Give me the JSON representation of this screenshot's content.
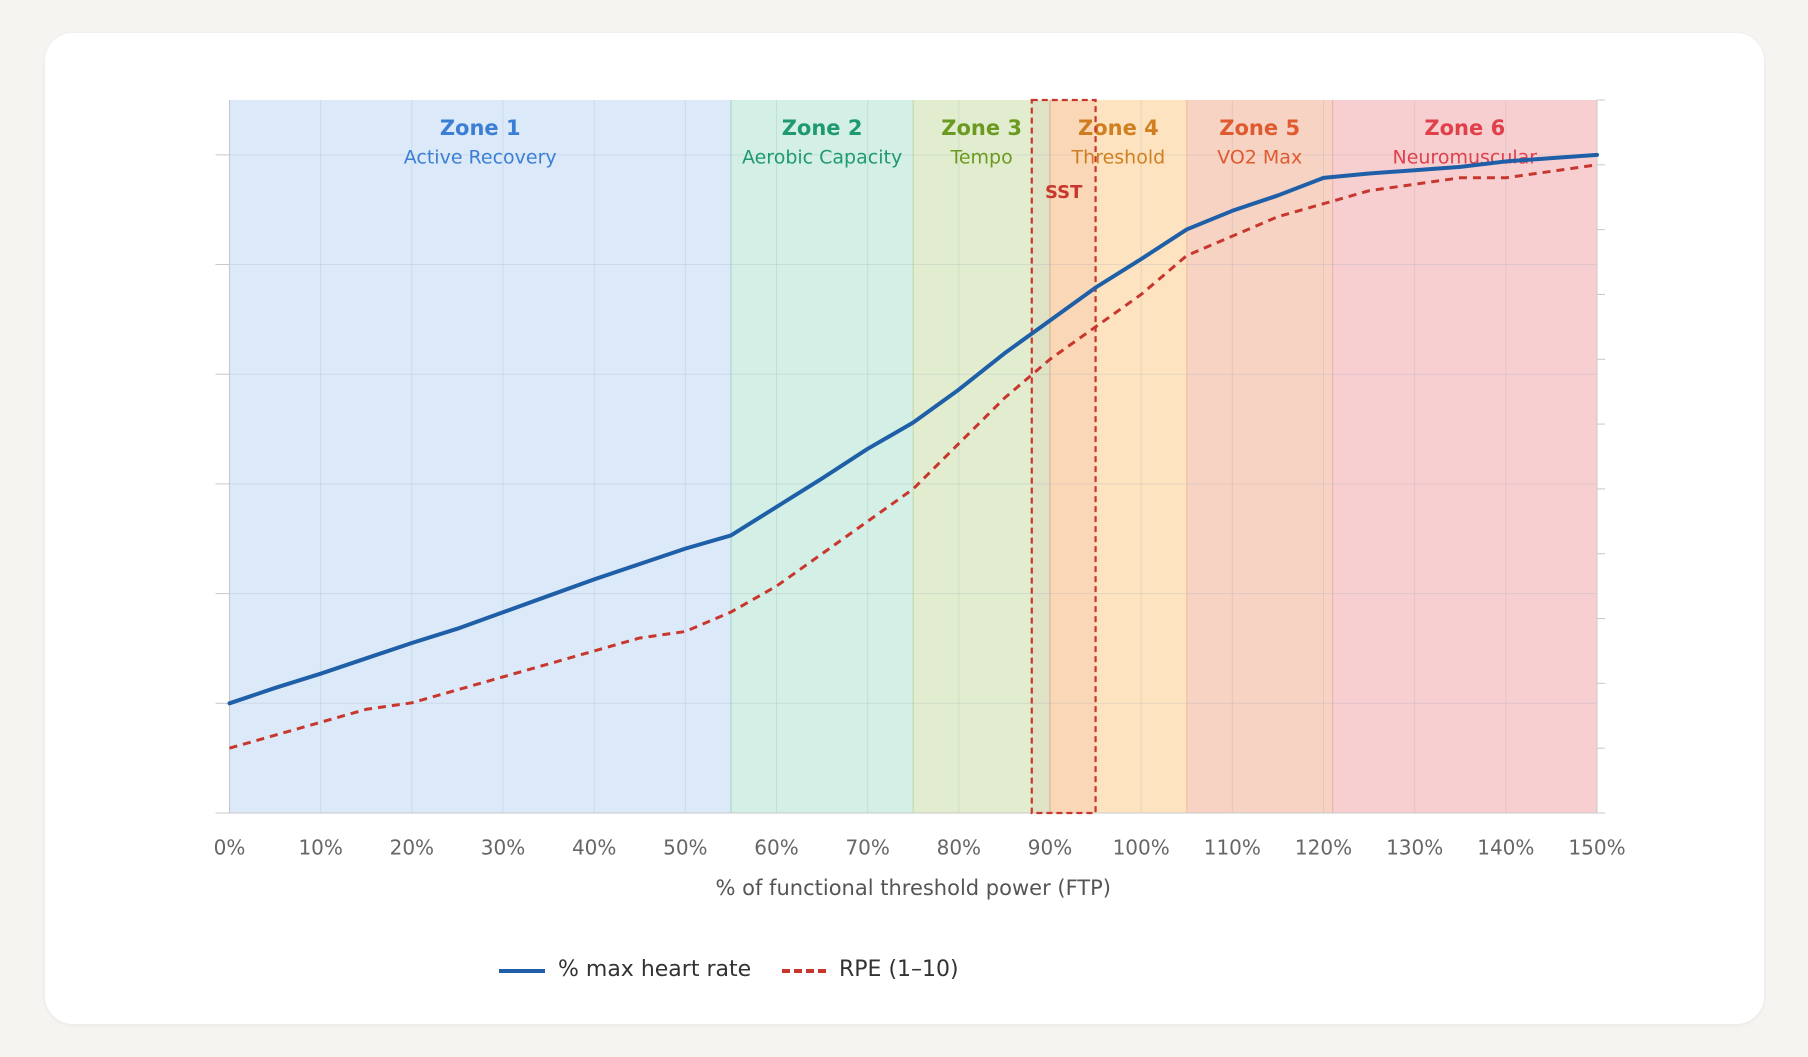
{
  "chart_data": {
    "type": "line",
    "x_label": "% of functional threshold power (FTP)",
    "x": [
      0,
      5,
      10,
      15,
      20,
      25,
      30,
      35,
      40,
      45,
      50,
      55,
      60,
      65,
      70,
      75,
      80,
      85,
      90,
      95,
      100,
      105,
      110,
      115,
      120,
      125,
      130,
      135,
      140,
      145,
      150
    ],
    "series": [
      {
        "name": "% max heart rate",
        "color": "#1f5fa8",
        "dash": false,
        "values": [
          50,
          51.4,
          52.7,
          54.1,
          55.5,
          56.8,
          58.3,
          59.8,
          61.3,
          62.7,
          64.1,
          65.3,
          67.9,
          70.5,
          73.2,
          75.6,
          78.6,
          81.9,
          84.9,
          87.9,
          90.5,
          93.2,
          94.9,
          96.3,
          97.9,
          98.3,
          98.6,
          98.9,
          99.4,
          99.7,
          100
        ]
      },
      {
        "name": "RPE (1–10)",
        "color": "#c8372d",
        "dash": true,
        "axis": "y2",
        "values": [
          1,
          1.2,
          1.4,
          1.6,
          1.7,
          1.9,
          2.1,
          2.3,
          2.5,
          2.7,
          2.8,
          3.1,
          3.5,
          4,
          4.5,
          5,
          5.7,
          6.4,
          7,
          7.5,
          8,
          8.6,
          8.9,
          9.2,
          9.4,
          9.6,
          9.7,
          9.8,
          9.8,
          9.9,
          10
        ]
      }
    ],
    "xlim": [
      0,
      150
    ],
    "xticks": [
      {
        "value": 0,
        "label": "0%"
      },
      {
        "value": 10,
        "label": "10%"
      },
      {
        "value": 20,
        "label": "20%"
      },
      {
        "value": 30,
        "label": "30%"
      },
      {
        "value": 40,
        "label": "40%"
      },
      {
        "value": 50,
        "label": "50%"
      },
      {
        "value": 60,
        "label": "60%"
      },
      {
        "value": 70,
        "label": "70%"
      },
      {
        "value": 80,
        "label": "80%"
      },
      {
        "value": 90,
        "label": "90%"
      },
      {
        "value": 100,
        "label": "100%"
      },
      {
        "value": 110,
        "label": "110%"
      },
      {
        "value": 120,
        "label": "120%"
      },
      {
        "value": 130,
        "label": "130%"
      },
      {
        "value": 140,
        "label": "140%"
      },
      {
        "value": 150,
        "label": "150%"
      }
    ],
    "ylim": [
      40,
      105
    ],
    "yticks": [
      40,
      50,
      60,
      70,
      80,
      90,
      100
    ],
    "y2lim": [
      0,
      11
    ],
    "y2ticks": [
      0,
      1,
      2,
      3,
      4,
      5,
      6,
      7,
      8,
      9,
      10,
      11
    ],
    "ytick_labels": false,
    "grid": true,
    "legend": "bottom",
    "zones": [
      {
        "name": "Zone 1",
        "label": "Active Recovery",
        "from": 0,
        "to": 55,
        "fill": "#dce9f9",
        "color": "#3b7fd4"
      },
      {
        "name": "Zone 2",
        "label": "Aerobic Capacity",
        "from": 55,
        "to": 75,
        "fill": "#d4efe6",
        "color": "#1f9a6e"
      },
      {
        "name": "Zone 3",
        "label": "Tempo",
        "from": 75,
        "to": 90,
        "fill": "#e2edcf",
        "color": "#6a9a1f"
      },
      {
        "name": "Zone 4",
        "label": "Threshold",
        "from": 90,
        "to": 105,
        "fill": "#fde3c0",
        "color": "#d08020"
      },
      {
        "name": "Zone 5",
        "label": "VO2 Max",
        "from": 105,
        "to": 121,
        "fill": "#f7d3c4",
        "color": "#e05a30"
      },
      {
        "name": "Zone 6",
        "label": "Neuromuscular",
        "from": 121,
        "to": 150,
        "fill": "#f7cfd1",
        "color": "#e0404a"
      }
    ],
    "highlight": {
      "label": "SST",
      "from": 88,
      "to": 95,
      "color": "#c8372d"
    }
  }
}
